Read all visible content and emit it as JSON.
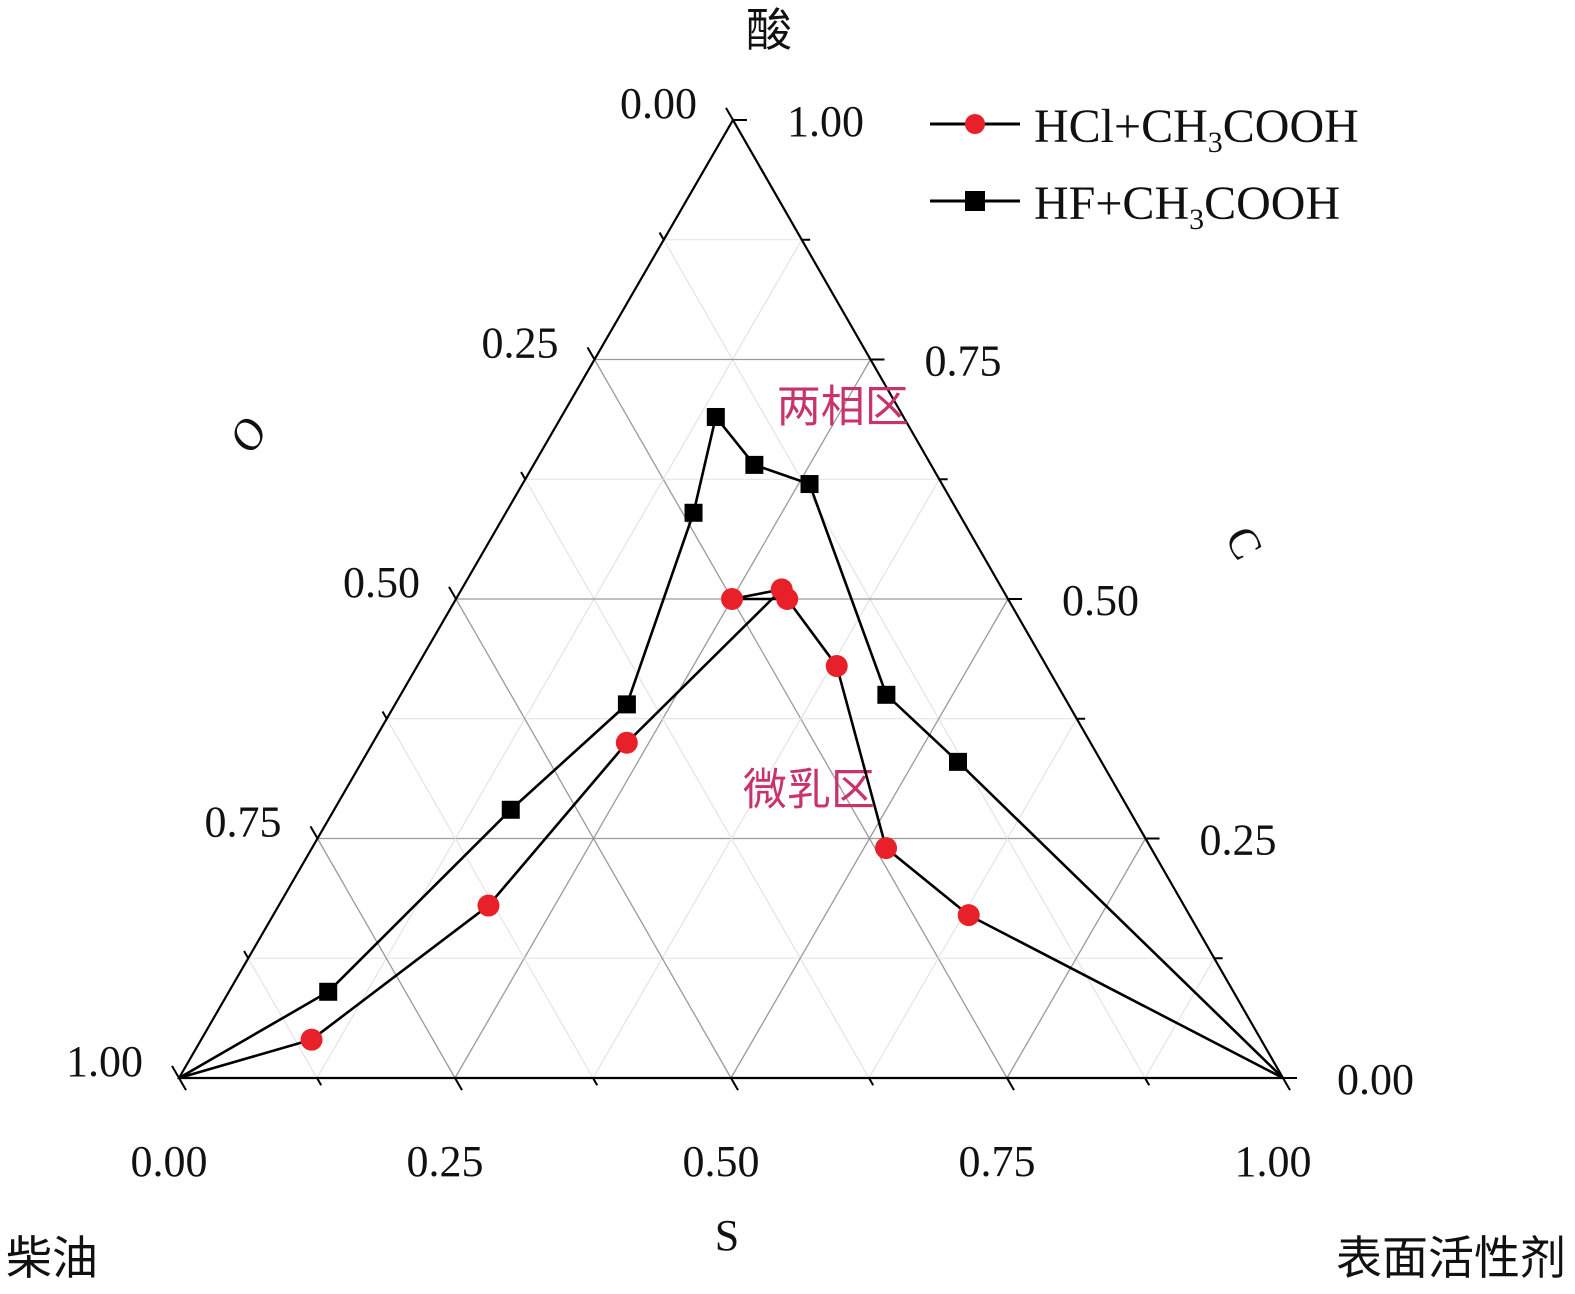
{
  "chart_data": {
    "type": "ternary-line",
    "vertex_labels": {
      "top": "酸",
      "left": "柴油",
      "right": "表面活性剂"
    },
    "axis_titles": {
      "left": "O",
      "right": "C",
      "bottom": "S"
    },
    "tick_labels": {
      "left": [
        "0.00",
        "0.25",
        "0.50",
        "0.75",
        "1.00"
      ],
      "right": [
        "1.00",
        "0.75",
        "0.50",
        "0.25",
        "0.00"
      ],
      "bottom": [
        "0.00",
        "0.25",
        "0.50",
        "0.75",
        "1.00"
      ]
    },
    "grid": true,
    "legend_position": "top-right",
    "region_labels": [
      {
        "text": "两相区",
        "s": 0.25,
        "c": 0.7
      },
      {
        "text": "微乳区",
        "s": 0.42,
        "c": 0.3
      }
    ],
    "series": [
      {
        "name": "HCl+CH3COOH",
        "legend_main": "HCl+CH",
        "legend_sub": "3",
        "legend_tail": "COOH",
        "marker": "circle",
        "color": "#e8202a",
        "points": [
          {
            "s": 0.0,
            "c": 0.0
          },
          {
            "s": 0.1,
            "c": 0.04
          },
          {
            "s": 0.19,
            "c": 0.18
          },
          {
            "s": 0.23,
            "c": 0.35
          },
          {
            "s": 0.29,
            "c": 0.51
          },
          {
            "s": 0.25,
            "c": 0.5
          },
          {
            "s": 0.3,
            "c": 0.5
          },
          {
            "s": 0.38,
            "c": 0.43
          },
          {
            "s": 0.52,
            "c": 0.24
          },
          {
            "s": 0.63,
            "c": 0.17
          },
          {
            "s": 1.0,
            "c": 0.0
          }
        ]
      },
      {
        "name": "HF+CH3COOH",
        "legend_main": "HF+CH",
        "legend_sub": "3",
        "legend_tail": "COOH",
        "marker": "square",
        "color": "#000000",
        "points": [
          {
            "s": 0.0,
            "c": 0.0
          },
          {
            "s": 0.09,
            "c": 0.09
          },
          {
            "s": 0.16,
            "c": 0.28
          },
          {
            "s": 0.21,
            "c": 0.39
          },
          {
            "s": 0.17,
            "c": 0.59
          },
          {
            "s": 0.14,
            "c": 0.69
          },
          {
            "s": 0.2,
            "c": 0.64
          },
          {
            "s": 0.26,
            "c": 0.62
          },
          {
            "s": 0.44,
            "c": 0.4
          },
          {
            "s": 0.54,
            "c": 0.33
          },
          {
            "s": 1.0,
            "c": 0.0
          }
        ]
      }
    ]
  }
}
